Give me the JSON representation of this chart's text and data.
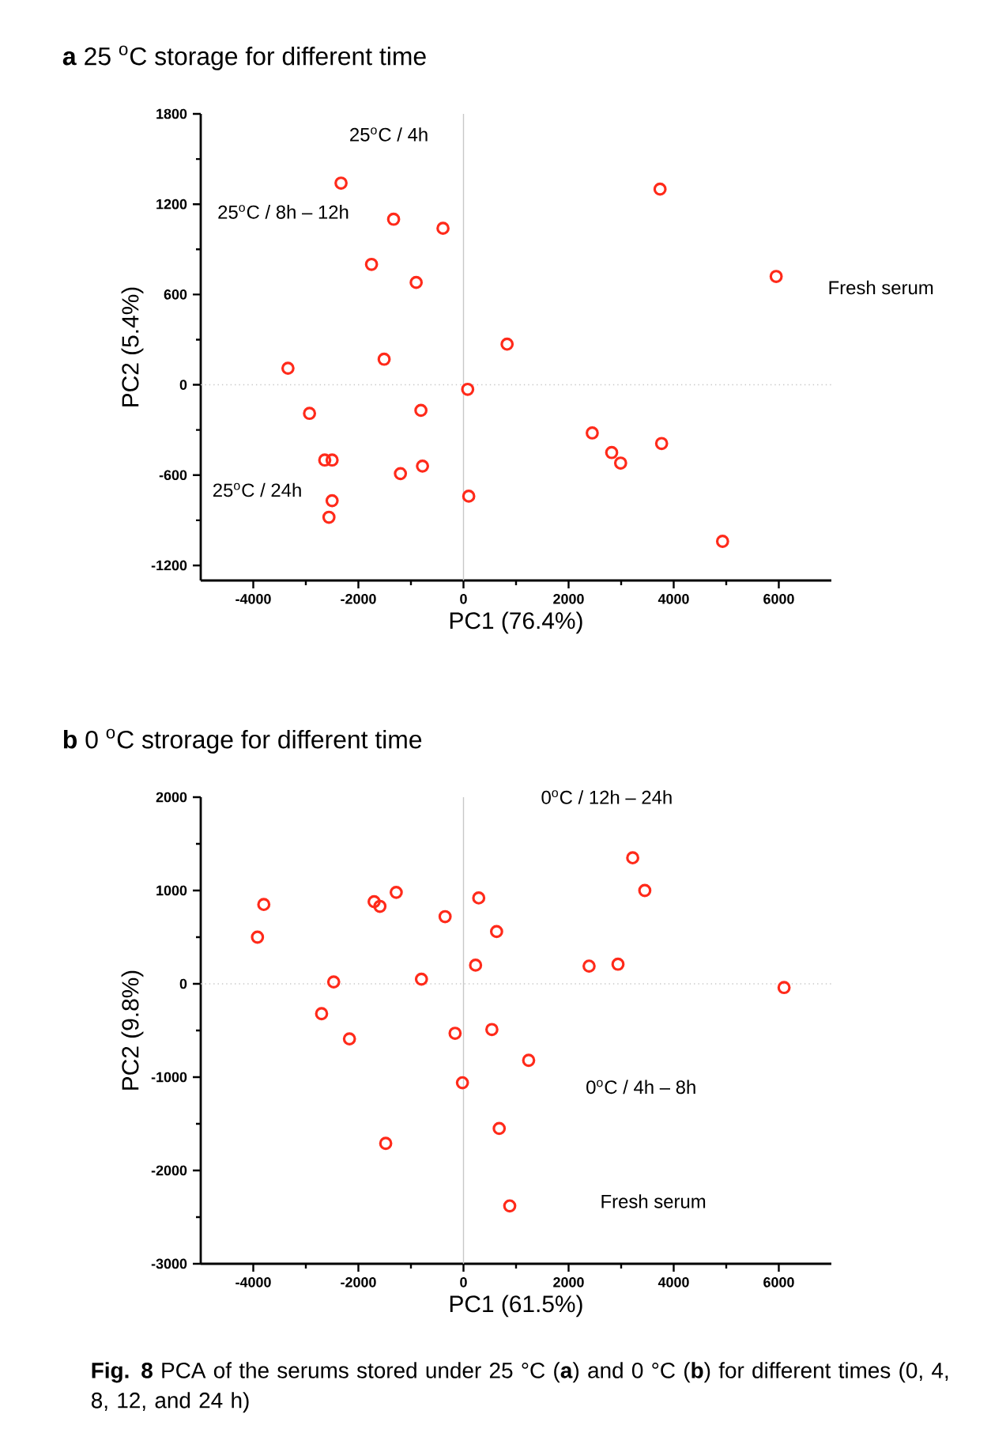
{
  "chart_data": [
    {
      "type": "scatter",
      "title": "**a** 25 $^{o}$C storage for different time",
      "xlabel": "PC1 (76.4%)",
      "ylabel": "PC2 (5.4%)",
      "x": [
        -2330,
        -1330,
        -390,
        -1750,
        -900,
        830,
        -1510,
        -3340,
        80,
        -2930,
        -810,
        -2640,
        -2500,
        -1200,
        -780,
        100,
        -2500,
        -2560,
        3740,
        5950,
        2450,
        2820,
        2990,
        3770,
        4930
      ],
      "values": [
        1340,
        1100,
        1040,
        800,
        680,
        270,
        170,
        110,
        -30,
        -190,
        -170,
        -500,
        -500,
        -590,
        -540,
        -740,
        -770,
        -880,
        1300,
        720,
        -320,
        -450,
        -520,
        -390,
        -1040
      ],
      "color": "#ff2a1a",
      "marker": "circle",
      "xlim": [
        -5000,
        7000
      ],
      "ylim": [
        -1300,
        1800
      ],
      "xticks": [
        -4000,
        -2000,
        0,
        2000,
        4000,
        6000
      ],
      "yticks": [
        -1200,
        -600,
        0,
        600,
        1200,
        1800
      ],
      "ref_lines": [
        {
          "axis": "x",
          "value": 0,
          "color": "#c8c8c8",
          "line_style": "solid"
        },
        {
          "axis": "y",
          "value": 0,
          "color": "#c8c8c8",
          "line_style": "dotted"
        }
      ],
      "annotations": [
        "25$^{o}$C / 4h",
        "25$^{o}$C / 8h – 12h",
        "25$^{o}$C / 24h",
        "Fresh serum"
      ]
    },
    {
      "type": "scatter",
      "title": "**b** 0 $^{o}$C strorage for different time",
      "xlabel": "PC1 (61.5%)",
      "ylabel": "PC2 (9.8%)",
      "x": [
        -3800,
        -3920,
        -1700,
        -1590,
        -1280,
        -350,
        290,
        630,
        230,
        -800,
        -2470,
        -2700,
        -2170,
        -160,
        540,
        1240,
        -20,
        680,
        -1480,
        880,
        3220,
        3450,
        2390,
        2940,
        6100
      ],
      "values": [
        850,
        500,
        880,
        830,
        980,
        720,
        920,
        560,
        200,
        50,
        20,
        -320,
        -590,
        -530,
        -490,
        -820,
        -1060,
        -1550,
        -1710,
        -2380,
        1350,
        1000,
        190,
        210,
        -40
      ],
      "color": "#ff2a1a",
      "marker": "circle",
      "xlim": [
        -5000,
        7000
      ],
      "ylim": [
        -3000,
        2000
      ],
      "xticks": [
        -4000,
        -2000,
        0,
        2000,
        4000,
        6000
      ],
      "yticks": [
        -3000,
        -2000,
        -1000,
        0,
        1000,
        2000
      ],
      "ref_lines": [
        {
          "axis": "x",
          "value": 0,
          "color": "#c8c8c8",
          "line_style": "solid"
        },
        {
          "axis": "y",
          "value": 0,
          "color": "#c8c8c8",
          "line_style": "dotted"
        }
      ],
      "annotations": [
        "0$^{o}$C / 12h – 24h",
        "0$^{o}$C / 4h – 8h",
        "Fresh serum",
        "**Fig. 8** PCA of the serums stored under 25 °C (**a**) and 0 °C (**b**) for different times (0, 4, 8, 12, and 24 h)"
      ]
    }
  ]
}
